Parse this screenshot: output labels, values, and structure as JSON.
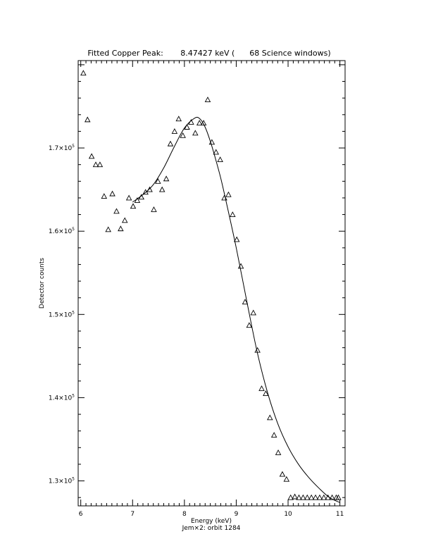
{
  "chart_data": {
    "type": "scatter",
    "title": "Fitted Copper Peak:       8.47427 keV (      68 Science windows)",
    "xlabel": "Energy (keV)",
    "sublabel": "Jem×2: orbit 1284",
    "ylabel": "Detector counts",
    "xlim": [
      5.95,
      11.1
    ],
    "ylim": [
      127000,
      180500
    ],
    "x_ticks": [
      {
        "value": 6,
        "label": "6"
      },
      {
        "value": 7,
        "label": "7"
      },
      {
        "value": 8,
        "label": "8"
      },
      {
        "value": 9,
        "label": "9"
      },
      {
        "value": 10,
        "label": "10"
      },
      {
        "value": 11,
        "label": "11"
      }
    ],
    "y_ticks": [
      {
        "value": 130000,
        "mantissa": "1.3×10",
        "exp": "5"
      },
      {
        "value": 140000,
        "mantissa": "1.4×10",
        "exp": "5"
      },
      {
        "value": 150000,
        "mantissa": "1.5×10",
        "exp": "5"
      },
      {
        "value": 160000,
        "mantissa": "1.6×10",
        "exp": "5"
      },
      {
        "value": 170000,
        "mantissa": "1.7×10",
        "exp": "5"
      }
    ],
    "grid": false,
    "series": [
      {
        "marker": "triangle-open",
        "x": [
          6.05,
          6.13,
          6.21,
          6.29,
          6.37,
          6.45,
          6.53,
          6.61,
          6.69,
          6.77,
          6.85,
          6.93,
          7.01,
          7.09,
          7.17,
          7.25,
          7.33,
          7.41,
          7.49,
          7.57,
          7.65,
          7.73,
          7.81,
          7.89,
          7.97,
          8.05,
          8.13,
          8.21,
          8.29,
          8.37,
          8.45,
          8.53,
          8.61,
          8.69,
          8.77,
          8.85,
          8.93,
          9.01,
          9.09,
          9.17,
          9.25,
          9.33,
          9.41,
          9.49,
          9.57,
          9.65,
          9.73,
          9.81,
          9.89,
          9.97,
          10.05,
          10.13,
          10.21,
          10.29,
          10.37,
          10.45,
          10.53,
          10.61,
          10.69,
          10.77,
          10.85,
          10.93,
          10.97
        ],
        "y": [
          179000,
          173400,
          169000,
          168000,
          168000,
          164200,
          160200,
          164500,
          162400,
          160300,
          161300,
          164000,
          163000,
          163700,
          164100,
          164700,
          165000,
          162600,
          166000,
          165000,
          166300,
          170500,
          172000,
          173500,
          171500,
          172500,
          173100,
          171800,
          173000,
          173000,
          175800,
          170700,
          169500,
          168600,
          164000,
          164400,
          162000,
          159000,
          155800,
          151500,
          148700,
          150200,
          145700,
          141100,
          140500,
          137600,
          135500,
          133400,
          130800,
          130200,
          128000,
          128100,
          128000,
          128000,
          128000,
          128000,
          128000,
          128000,
          128000,
          128000,
          128000,
          128000,
          128000
        ]
      },
      {
        "name": "",
        "type": "line",
        "x": [
          7.0,
          7.2,
          7.4,
          7.6,
          7.8,
          8.0,
          8.2,
          8.3,
          8.4,
          8.5,
          8.6,
          8.7,
          8.8,
          9.0,
          9.2,
          9.4,
          9.6,
          9.8,
          10.0,
          10.2,
          10.4,
          10.6,
          10.8,
          11.0
        ],
        "y": [
          163500,
          164400,
          165600,
          167600,
          170100,
          172400,
          173600,
          173500,
          172500,
          170800,
          168700,
          166400,
          163700,
          158000,
          151700,
          145600,
          140700,
          136900,
          134100,
          132000,
          130400,
          129100,
          128000,
          127400
        ]
      }
    ]
  }
}
